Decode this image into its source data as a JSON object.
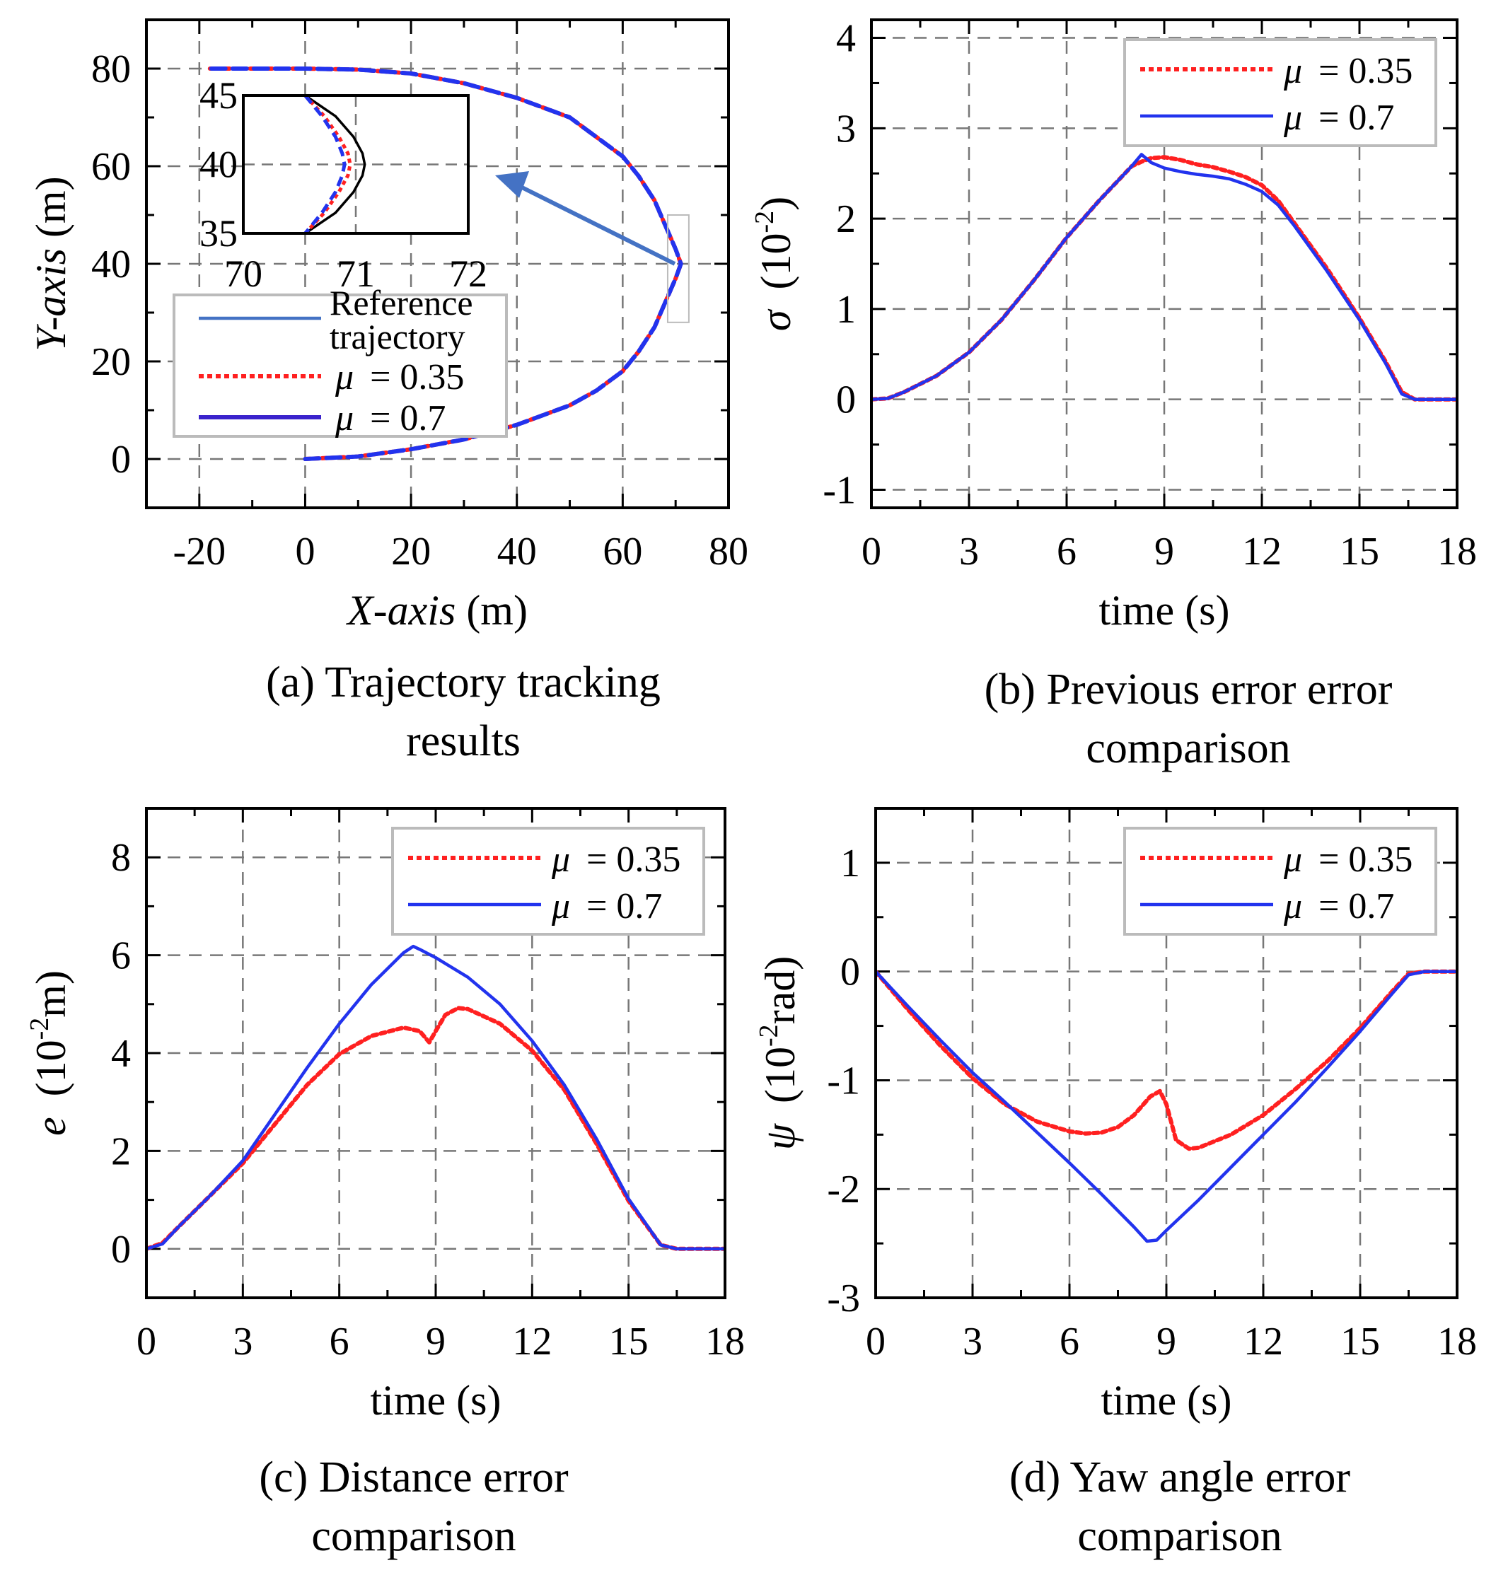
{
  "chart_data": [
    {
      "id": "a",
      "type": "line",
      "caption": [
        "(a) Trajectory tracking",
        "results"
      ],
      "xlabel": {
        "italic": "X-axis",
        "unit": " (m)"
      },
      "ylabel": {
        "italic": "Y-axis",
        "unit": " (m)"
      },
      "xlim": [
        -30,
        80
      ],
      "ylim": [
        -10,
        90
      ],
      "xticks": [
        -20,
        0,
        20,
        40,
        60,
        80
      ],
      "yticks": [
        0,
        20,
        40,
        60,
        80
      ],
      "xtick_labels": [
        "-20",
        "0",
        "20",
        "40",
        "60",
        "80"
      ],
      "ytick_labels": [
        "0",
        "20",
        "40",
        "60",
        "80"
      ],
      "grid": true,
      "legend_position": "lower-left",
      "series": [
        {
          "name": "Reference trajectory",
          "label_lines": [
            "Reference",
            "trajectory"
          ],
          "style": "solid",
          "color": "#000000",
          "x": [
            0,
            10,
            20,
            30,
            40,
            50,
            55,
            60,
            63,
            66,
            68,
            70,
            71,
            70,
            68,
            66,
            63,
            60,
            55,
            50,
            40,
            30,
            20,
            10,
            0,
            -10,
            -18
          ],
          "y": [
            0,
            0.5,
            2,
            4,
            7,
            11,
            14,
            18,
            22,
            27,
            32,
            37,
            40,
            43,
            48,
            53,
            58,
            62,
            66,
            70,
            74,
            77,
            79,
            79.8,
            80,
            80,
            80
          ]
        },
        {
          "name": "μ = 0.35",
          "mu": "0.35",
          "style": "dotted",
          "color": "#ff2020",
          "x": [
            0,
            10,
            20,
            30,
            40,
            50,
            55,
            60,
            63,
            66,
            68,
            70,
            71,
            70,
            68,
            66,
            63,
            60,
            55,
            50,
            40,
            30,
            20,
            10,
            0,
            -10,
            -18
          ],
          "y": [
            0,
            0.5,
            2,
            4,
            7,
            11,
            14,
            18,
            22,
            27,
            32,
            37,
            40,
            43,
            48,
            53,
            58,
            62,
            66,
            70,
            74,
            77,
            79,
            79.8,
            80,
            80,
            80
          ]
        },
        {
          "name": "μ = 0.7",
          "mu": "0.7",
          "style": "dashed",
          "color": "#2233ee",
          "x": [
            0,
            10,
            20,
            30,
            40,
            50,
            55,
            60,
            63,
            66,
            68,
            70,
            71,
            70,
            68,
            66,
            63,
            60,
            55,
            50,
            40,
            30,
            20,
            10,
            0,
            -10,
            -18
          ],
          "y": [
            0,
            0.5,
            2,
            4,
            7,
            11,
            14,
            18,
            22,
            27,
            32,
            37,
            40,
            43,
            48,
            53,
            58,
            62,
            66,
            70,
            74,
            77,
            79,
            79.8,
            80,
            80,
            80
          ]
        }
      ],
      "inset": {
        "xlim": [
          70,
          72
        ],
        "ylim": [
          35,
          45
        ],
        "xticks": [
          70,
          71,
          72
        ],
        "yticks": [
          35,
          40,
          45
        ],
        "xtick_labels": [
          "70",
          "71",
          "72"
        ],
        "ytick_labels": [
          "35",
          "40",
          "45"
        ],
        "series": [
          {
            "name": "Reference trajectory",
            "x": [
              70.55,
              70.82,
              70.98,
              71.06,
              71.08,
              71.06,
              70.98,
              70.82,
              70.55
            ],
            "y": [
              45,
              43.5,
              42,
              40.8,
              40,
              39.2,
              38,
              36.5,
              35
            ]
          },
          {
            "name": "μ = 0.35",
            "x": [
              70.55,
              70.72,
              70.85,
              70.93,
              70.95,
              70.93,
              70.85,
              70.72,
              70.55
            ],
            "y": [
              45,
              43.5,
              42,
              40.8,
              40,
              39.2,
              38,
              36.5,
              35
            ]
          },
          {
            "name": "μ = 0.7",
            "x": [
              70.55,
              70.7,
              70.82,
              70.88,
              70.9,
              70.88,
              70.82,
              70.7,
              70.55
            ],
            "y": [
              45,
              43.5,
              42,
              40.8,
              40,
              39.2,
              38,
              36.5,
              35
            ]
          }
        ],
        "zoom_box_data": {
          "x": [
            68.5,
            72.5
          ],
          "y": [
            28,
            50
          ]
        }
      }
    },
    {
      "id": "b",
      "type": "line",
      "caption": [
        "(b) Previous error error",
        "comparison"
      ],
      "xlabel": {
        "text": "time (s)"
      },
      "ylabel": {
        "symbol": "σ",
        "base": "10",
        "exp": "-2",
        "tail": ""
      },
      "xlim": [
        0,
        18
      ],
      "ylim": [
        -1.2,
        4.2
      ],
      "xticks": [
        0,
        3,
        6,
        9,
        12,
        15,
        18
      ],
      "yticks": [
        -1,
        0,
        1,
        2,
        3,
        4
      ],
      "xtick_labels": [
        "0",
        "3",
        "6",
        "9",
        "12",
        "15",
        "18"
      ],
      "ytick_labels": [
        "-1",
        "0",
        "1",
        "2",
        "3",
        "4"
      ],
      "grid": true,
      "legend_position": "top-right",
      "series": [
        {
          "name": "μ = 0.35",
          "mu": "0.35",
          "style": "dotted",
          "color": "#ff2020",
          "x": [
            0,
            0.5,
            1,
            2,
            3,
            4,
            5,
            6,
            7,
            8,
            8.3,
            8.6,
            9,
            9.5,
            10,
            10.5,
            11,
            11.5,
            12,
            12.5,
            13,
            14,
            15,
            15.8,
            16.3,
            16.7,
            17.5,
            18
          ],
          "y": [
            0,
            0.01,
            0.08,
            0.26,
            0.52,
            0.88,
            1.32,
            1.79,
            2.2,
            2.58,
            2.63,
            2.67,
            2.68,
            2.65,
            2.6,
            2.57,
            2.52,
            2.46,
            2.37,
            2.2,
            1.95,
            1.45,
            0.9,
            0.42,
            0.08,
            0.0,
            0.0,
            0.0
          ]
        },
        {
          "name": "μ = 0.7",
          "mu": "0.7",
          "style": "solid",
          "color": "#2233ee",
          "x": [
            0,
            0.5,
            1,
            2,
            3,
            4,
            5,
            6,
            7,
            8,
            8.3,
            8.6,
            9,
            9.5,
            10,
            10.5,
            11,
            11.5,
            12,
            12.5,
            13,
            14,
            15,
            15.8,
            16.3,
            16.7,
            17.5,
            18
          ],
          "y": [
            0,
            0.01,
            0.08,
            0.26,
            0.52,
            0.88,
            1.32,
            1.79,
            2.2,
            2.58,
            2.71,
            2.62,
            2.56,
            2.52,
            2.49,
            2.47,
            2.44,
            2.38,
            2.3,
            2.15,
            1.92,
            1.42,
            0.88,
            0.4,
            0.06,
            0.0,
            0.0,
            0.0
          ]
        }
      ]
    },
    {
      "id": "c",
      "type": "line",
      "caption": [
        "(c) Distance error",
        "comparison"
      ],
      "xlabel": {
        "text": "time (s)"
      },
      "ylabel": {
        "symbol": "e",
        "base": "10",
        "exp": "-2",
        "tail": "m"
      },
      "xlim": [
        0,
        18
      ],
      "ylim": [
        -1,
        9
      ],
      "xticks": [
        0,
        3,
        6,
        9,
        12,
        15,
        18
      ],
      "yticks": [
        0,
        2,
        4,
        6,
        8
      ],
      "xtick_labels": [
        "0",
        "3",
        "6",
        "9",
        "12",
        "15",
        "18"
      ],
      "ytick_labels": [
        "0",
        "2",
        "4",
        "6",
        "8"
      ],
      "grid": true,
      "legend_position": "top-right",
      "series": [
        {
          "name": "μ = 0.35",
          "mu": "0.35",
          "style": "dotted",
          "color": "#ff2020",
          "x": [
            0,
            0.5,
            1,
            2,
            3,
            4,
            5,
            6,
            7,
            8,
            8.5,
            8.8,
            9,
            9.3,
            9.7,
            10,
            11,
            12,
            13,
            14,
            15,
            16,
            16.5,
            17,
            18
          ],
          "y": [
            0,
            0.12,
            0.45,
            1.1,
            1.75,
            2.55,
            3.35,
            3.98,
            4.35,
            4.52,
            4.45,
            4.22,
            4.45,
            4.78,
            4.92,
            4.9,
            4.6,
            4.05,
            3.25,
            2.15,
            0.98,
            0.08,
            0.0,
            0.0,
            0.0
          ]
        },
        {
          "name": "μ = 0.7",
          "mu": "0.7",
          "style": "solid",
          "color": "#2233ee",
          "x": [
            0,
            0.5,
            1,
            2,
            3,
            4,
            5,
            6,
            7,
            8,
            8.3,
            8.5,
            9,
            10,
            11,
            12,
            13,
            14,
            15,
            16,
            16.5,
            17,
            18
          ],
          "y": [
            0,
            0.1,
            0.45,
            1.1,
            1.8,
            2.75,
            3.7,
            4.6,
            5.4,
            6.05,
            6.18,
            6.12,
            5.95,
            5.55,
            5.0,
            4.25,
            3.35,
            2.25,
            1.02,
            0.08,
            0.0,
            0.0,
            0.0
          ]
        }
      ]
    },
    {
      "id": "d",
      "type": "line",
      "caption": [
        "(d) Yaw angle error",
        "comparison"
      ],
      "xlabel": {
        "text": "time (s)"
      },
      "ylabel": {
        "symbol": "ψ",
        "base": "10",
        "exp": "-2",
        "tail": "rad"
      },
      "xlim": [
        0,
        18
      ],
      "ylim": [
        -3,
        1.5
      ],
      "xticks": [
        0,
        3,
        6,
        9,
        12,
        15,
        18
      ],
      "yticks": [
        -3,
        -2,
        -1,
        0,
        1
      ],
      "xtick_labels": [
        "0",
        "3",
        "6",
        "9",
        "12",
        "15",
        "18"
      ],
      "ytick_labels": [
        "-3",
        "-2",
        "-1",
        "0",
        "1"
      ],
      "grid": true,
      "legend_position": "top-right",
      "series": [
        {
          "name": "μ = 0.35",
          "mu": "0.35",
          "style": "dotted",
          "color": "#ff2020",
          "x": [
            0,
            1,
            2,
            3,
            4,
            5,
            6,
            6.5,
            7,
            7.5,
            8,
            8.5,
            8.8,
            9,
            9.3,
            9.7,
            10,
            11,
            12,
            13,
            14,
            15,
            16,
            16.5,
            17,
            18
          ],
          "y": [
            0,
            -0.35,
            -0.68,
            -0.98,
            -1.22,
            -1.38,
            -1.47,
            -1.49,
            -1.48,
            -1.43,
            -1.32,
            -1.15,
            -1.1,
            -1.22,
            -1.55,
            -1.63,
            -1.62,
            -1.5,
            -1.32,
            -1.08,
            -0.82,
            -0.52,
            -0.18,
            -0.02,
            0.0,
            0.0
          ]
        },
        {
          "name": "μ = 0.7",
          "mu": "0.7",
          "style": "solid",
          "color": "#2233ee",
          "x": [
            0,
            1,
            2,
            3,
            4,
            5,
            6,
            7,
            8,
            8.4,
            8.7,
            9,
            10,
            11,
            12,
            13,
            14,
            15,
            16,
            16.5,
            17,
            18
          ],
          "y": [
            0,
            -0.32,
            -0.63,
            -0.93,
            -1.2,
            -1.48,
            -1.76,
            -2.05,
            -2.35,
            -2.48,
            -2.47,
            -2.38,
            -2.1,
            -1.8,
            -1.5,
            -1.2,
            -0.88,
            -0.55,
            -0.2,
            -0.03,
            0.0,
            0.0
          ]
        }
      ]
    }
  ]
}
